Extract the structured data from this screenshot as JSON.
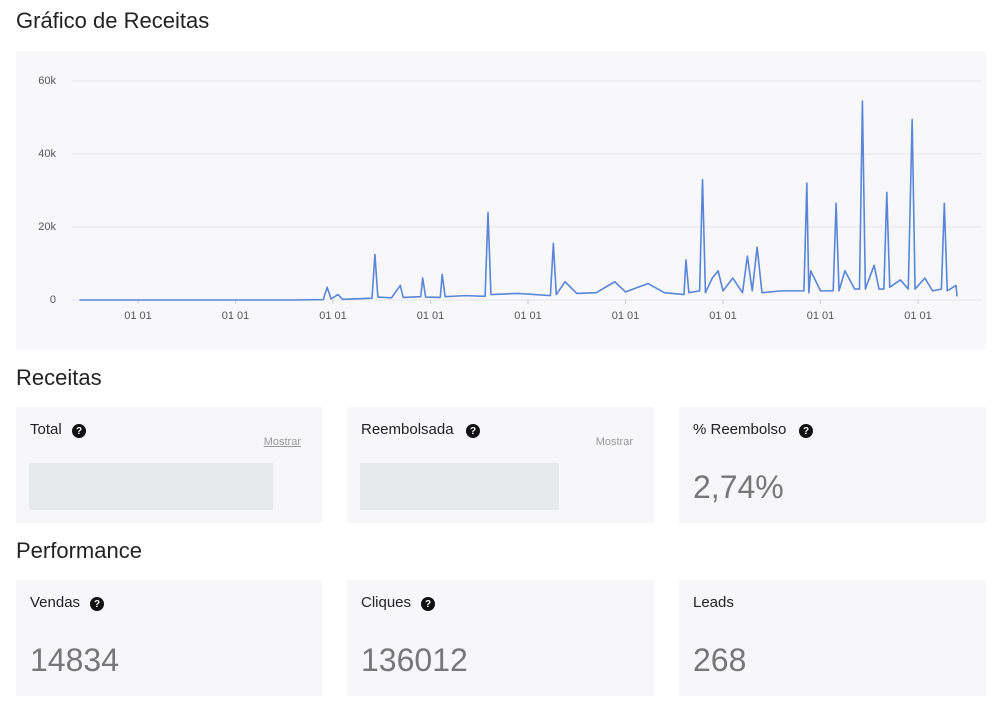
{
  "title": "Gráfico de Receitas",
  "chart_data": {
    "type": "line",
    "color": "#5a85d8",
    "grid": true,
    "xlim": [
      0.4,
      9.48
    ],
    "xticks": [
      {
        "value": 1,
        "label": "01 01"
      },
      {
        "value": 2,
        "label": "01 01"
      },
      {
        "value": 3,
        "label": "01 01"
      },
      {
        "value": 4,
        "label": "01 01"
      },
      {
        "value": 5,
        "label": "01 01"
      },
      {
        "value": 6,
        "label": "01 01"
      },
      {
        "value": 7,
        "label": "01 01"
      },
      {
        "value": 8,
        "label": "01 01"
      },
      {
        "value": 9,
        "label": "01 01"
      }
    ],
    "ylim": [
      0,
      60000
    ],
    "yticks": [
      0,
      {
        "value": 20000,
        "label": "20k"
      },
      {
        "value": 40000,
        "label": "40k"
      },
      {
        "value": 60000,
        "label": "60k"
      }
    ],
    "x": [
      0.4,
      1.5,
      2.6,
      2.9,
      2.94,
      2.98,
      3.05,
      3.1,
      3.4,
      3.43,
      3.46,
      3.6,
      3.69,
      3.72,
      3.9,
      3.92,
      3.95,
      4.1,
      4.12,
      4.15,
      4.35,
      4.56,
      4.59,
      4.62,
      4.9,
      5.23,
      5.26,
      5.29,
      5.38,
      5.5,
      5.7,
      5.89,
      6.0,
      6.23,
      6.4,
      6.6,
      6.62,
      6.65,
      6.76,
      6.79,
      6.82,
      6.89,
      6.95,
      7.0,
      7.1,
      7.2,
      7.25,
      7.3,
      7.35,
      7.4,
      7.6,
      7.83,
      7.86,
      7.88,
      7.9,
      8.0,
      8.13,
      8.16,
      8.19,
      8.25,
      8.35,
      8.4,
      8.43,
      8.46,
      8.55,
      8.6,
      8.65,
      8.68,
      8.71,
      8.82,
      8.9,
      8.94,
      8.97,
      9.07,
      9.15,
      9.24,
      9.27,
      9.3,
      9.39,
      9.4
    ],
    "values": [
      0,
      0,
      0,
      100,
      3500,
      300,
      1500,
      200,
      500,
      12500,
      800,
      600,
      4000,
      700,
      900,
      6000,
      800,
      700,
      7000,
      900,
      1200,
      1000,
      24000,
      1500,
      1800,
      1200,
      15500,
      1500,
      5000,
      1800,
      2000,
      5000,
      2200,
      4500,
      2000,
      1500,
      11000,
      2000,
      2500,
      33000,
      2000,
      6000,
      8000,
      2500,
      6000,
      2000,
      12000,
      2500,
      14500,
      2000,
      2500,
      2500,
      32000,
      2000,
      8000,
      2500,
      2500,
      26500,
      2500,
      8000,
      3000,
      3000,
      54500,
      3000,
      9500,
      3000,
      3000,
      29500,
      3500,
      5500,
      3000,
      49500,
      3000,
      6000,
      2500,
      3000,
      26500,
      2500,
      4000,
      1000
    ]
  },
  "sections": [
    {
      "title": "Receitas",
      "cards": [
        {
          "label": "Total",
          "action": "Mostrar"
        },
        {
          "label": "Reembolsada",
          "action": "Mostrar"
        },
        {
          "label": "% Reembolso",
          "value": "2,74%"
        }
      ]
    },
    {
      "title": "Performance",
      "cards": [
        {
          "label": "Vendas",
          "value": 14834
        },
        {
          "label": "Cliques",
          "value": 136012
        },
        {
          "label": "Leads",
          "value": 268
        }
      ]
    }
  ]
}
